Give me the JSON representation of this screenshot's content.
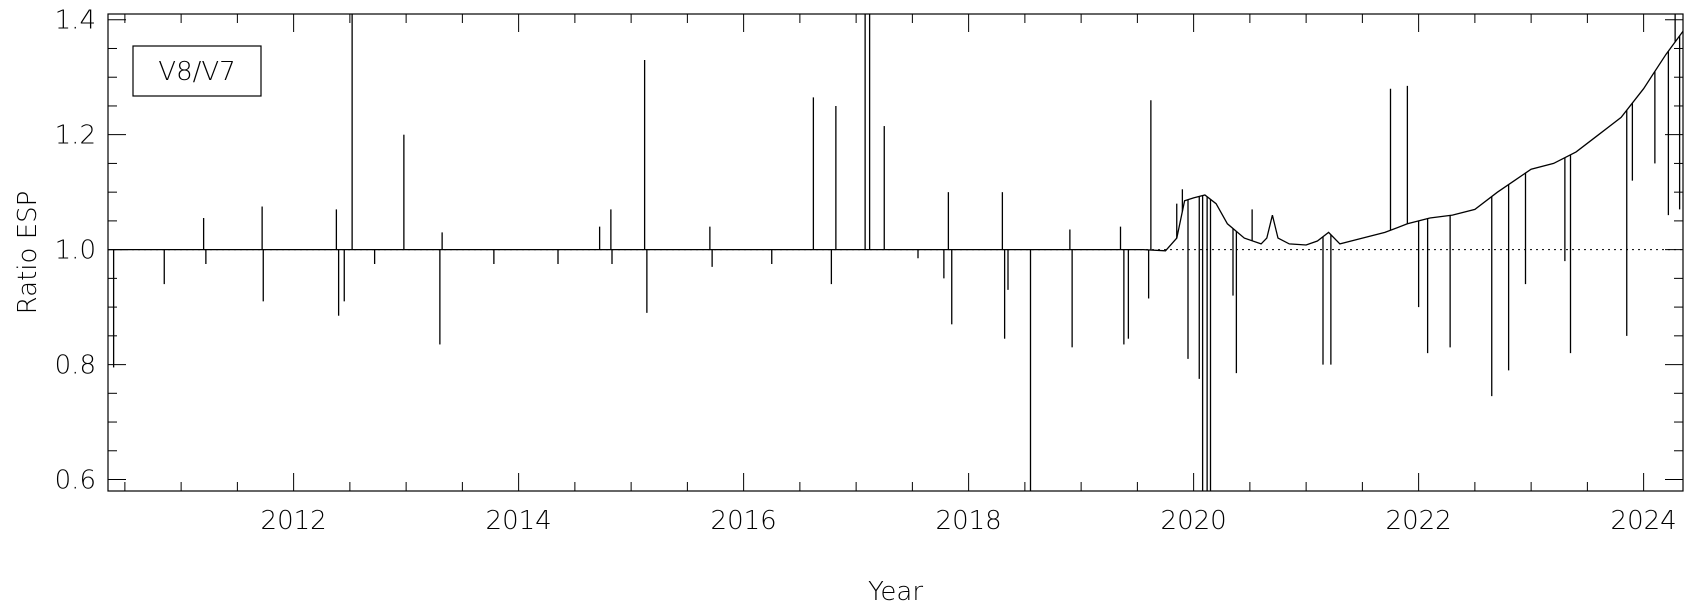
{
  "chart_data": {
    "type": "line",
    "title": "",
    "xlabel": "Year",
    "ylabel": "Ratio ESP",
    "xlim": [
      2010.35,
      2024.35
    ],
    "ylim": [
      0.58,
      1.41
    ],
    "x_ticks": [
      2012,
      2014,
      2016,
      2018,
      2020,
      2022,
      2024
    ],
    "x_tick_labels": [
      "2012",
      "2014",
      "2016",
      "2018",
      "2020",
      "2022",
      "2024"
    ],
    "y_ticks": [
      0.6,
      0.8,
      1.0,
      1.2,
      1.4
    ],
    "y_tick_labels": [
      "0.6",
      "0.8",
      "1.0",
      "1.2",
      "1.4"
    ],
    "reference_line": {
      "y": 1.0,
      "style": "dotted"
    },
    "legend": {
      "entries": [
        "V8/V7"
      ],
      "placement": "top-left"
    },
    "grid": false,
    "series": [
      {
        "name": "V8/V7",
        "baseline": [
          [
            2010.35,
            1.0
          ],
          [
            2019.55,
            1.0
          ],
          [
            2019.75,
            0.998
          ],
          [
            2019.85,
            1.02
          ],
          [
            2019.92,
            1.085
          ],
          [
            2020.0,
            1.09
          ],
          [
            2020.1,
            1.095
          ],
          [
            2020.2,
            1.08
          ],
          [
            2020.3,
            1.045
          ],
          [
            2020.45,
            1.02
          ],
          [
            2020.6,
            1.01
          ],
          [
            2020.65,
            1.02
          ],
          [
            2020.7,
            1.06
          ],
          [
            2020.75,
            1.02
          ],
          [
            2020.85,
            1.01
          ],
          [
            2021.0,
            1.008
          ],
          [
            2021.1,
            1.015
          ],
          [
            2021.2,
            1.03
          ],
          [
            2021.3,
            1.01
          ],
          [
            2021.5,
            1.02
          ],
          [
            2021.7,
            1.03
          ],
          [
            2021.9,
            1.045
          ],
          [
            2022.1,
            1.055
          ],
          [
            2022.3,
            1.06
          ],
          [
            2022.5,
            1.07
          ],
          [
            2022.7,
            1.1
          ],
          [
            2022.85,
            1.12
          ],
          [
            2023.0,
            1.14
          ],
          [
            2023.2,
            1.15
          ],
          [
            2023.4,
            1.17
          ],
          [
            2023.6,
            1.2
          ],
          [
            2023.8,
            1.23
          ],
          [
            2024.0,
            1.28
          ],
          [
            2024.2,
            1.34
          ],
          [
            2024.35,
            1.38
          ]
        ],
        "spikes": [
          [
            2010.4,
            0.795
          ],
          [
            2010.85,
            0.94
          ],
          [
            2011.2,
            1.055
          ],
          [
            2011.22,
            0.975
          ],
          [
            2011.72,
            1.075
          ],
          [
            2011.73,
            0.91
          ],
          [
            2012.38,
            1.07
          ],
          [
            2012.4,
            0.885
          ],
          [
            2012.45,
            0.91
          ],
          [
            2012.52,
            1.41
          ],
          [
            2012.72,
            0.975
          ],
          [
            2012.98,
            1.2
          ],
          [
            2013.3,
            0.835
          ],
          [
            2013.32,
            1.03
          ],
          [
            2013.78,
            0.975
          ],
          [
            2014.35,
            0.975
          ],
          [
            2014.72,
            1.04
          ],
          [
            2014.82,
            1.07
          ],
          [
            2014.83,
            0.975
          ],
          [
            2015.12,
            1.33
          ],
          [
            2015.14,
            0.89
          ],
          [
            2015.7,
            1.04
          ],
          [
            2015.72,
            0.97
          ],
          [
            2016.25,
            0.975
          ],
          [
            2016.62,
            1.265
          ],
          [
            2016.78,
            0.94
          ],
          [
            2016.82,
            1.25
          ],
          [
            2017.08,
            1.41
          ],
          [
            2017.12,
            1.41
          ],
          [
            2017.25,
            1.215
          ],
          [
            2017.55,
            0.985
          ],
          [
            2017.78,
            0.95
          ],
          [
            2017.82,
            1.1
          ],
          [
            2017.85,
            0.87
          ],
          [
            2018.3,
            1.1
          ],
          [
            2018.32,
            0.845
          ],
          [
            2018.35,
            0.93
          ],
          [
            2018.55,
            0.58
          ],
          [
            2018.9,
            1.035
          ],
          [
            2018.92,
            0.83
          ],
          [
            2019.35,
            1.04
          ],
          [
            2019.38,
            0.835
          ],
          [
            2019.42,
            0.845
          ],
          [
            2019.6,
            0.915
          ],
          [
            2019.62,
            1.26
          ],
          [
            2019.85,
            1.08
          ],
          [
            2019.9,
            1.105
          ],
          [
            2019.95,
            0.81
          ],
          [
            2020.05,
            0.775
          ],
          [
            2020.08,
            0.58
          ],
          [
            2020.12,
            0.58
          ],
          [
            2020.15,
            0.58
          ],
          [
            2020.35,
            0.92
          ],
          [
            2020.38,
            0.785
          ],
          [
            2020.52,
            1.07
          ],
          [
            2021.15,
            0.8
          ],
          [
            2021.22,
            0.8
          ],
          [
            2021.75,
            1.28
          ],
          [
            2021.9,
            1.285
          ],
          [
            2022.0,
            0.9
          ],
          [
            2022.08,
            0.82
          ],
          [
            2022.28,
            0.83
          ],
          [
            2022.65,
            0.745
          ],
          [
            2022.8,
            0.79
          ],
          [
            2022.95,
            0.94
          ],
          [
            2023.3,
            0.98
          ],
          [
            2023.35,
            0.82
          ],
          [
            2023.85,
            0.85
          ],
          [
            2023.9,
            1.12
          ],
          [
            2024.1,
            1.15
          ],
          [
            2024.22,
            1.06
          ],
          [
            2024.28,
            1.41
          ],
          [
            2024.32,
            1.07
          ]
        ]
      }
    ]
  }
}
